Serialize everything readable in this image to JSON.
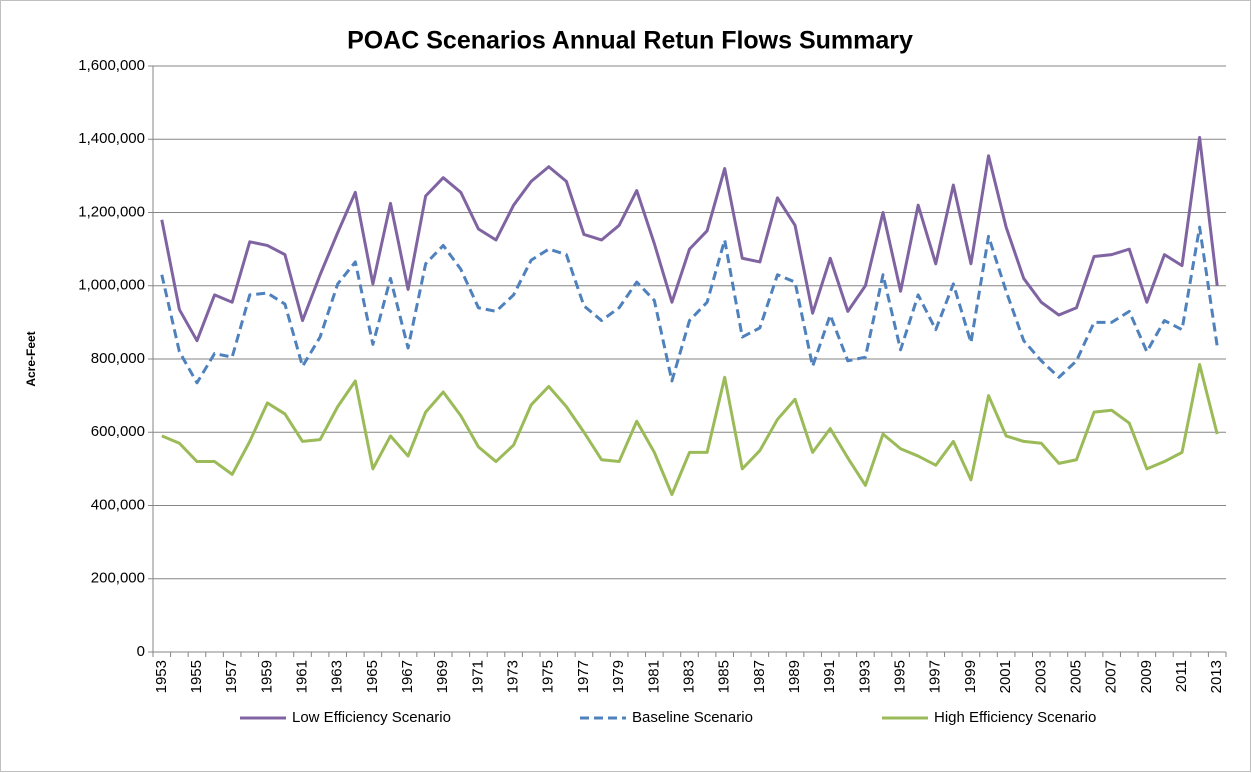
{
  "chart_data": {
    "type": "line",
    "title": "POAC Scenarios Annual Retun Flows Summary",
    "y_label": "Acre-Feet",
    "categories": [
      "1953",
      null,
      "1955",
      null,
      "1957",
      null,
      "1959",
      null,
      "1961",
      null,
      "1963",
      null,
      "1965",
      null,
      "1967",
      null,
      "1969",
      null,
      "1971",
      null,
      "1973",
      null,
      "1975",
      null,
      "1977",
      null,
      "1979",
      null,
      "1981",
      null,
      "1983",
      null,
      "1985",
      null,
      "1987",
      null,
      "1989",
      null,
      "1991",
      null,
      "1993",
      null,
      "1995",
      null,
      "1997",
      null,
      "1999",
      null,
      "2001",
      null,
      "2003",
      null,
      "2005",
      null,
      "2007",
      null,
      "2009",
      null,
      "2011",
      null,
      "2013"
    ],
    "series": [
      {
        "name": "Low Efficiency Scenario",
        "color": "#8064a2",
        "line_style": "solid",
        "values": [
          1180000,
          935000,
          850000,
          975000,
          955000,
          1120000,
          1110000,
          1085000,
          905000,
          1030000,
          1145000,
          1255000,
          1005000,
          1225000,
          990000,
          1245000,
          1295000,
          1255000,
          1155000,
          1125000,
          1220000,
          1285000,
          1325000,
          1285000,
          1140000,
          1125000,
          1165000,
          1260000,
          1115000,
          955000,
          1100000,
          1150000,
          1320000,
          1075000,
          1065000,
          1240000,
          1165000,
          925000,
          1075000,
          930000,
          1000000,
          1200000,
          985000,
          1220000,
          1060000,
          1275000,
          1060000,
          1355000,
          1160000,
          1020000,
          955000,
          920000,
          940000,
          1080000,
          1085000,
          1100000,
          955000,
          1085000,
          1055000,
          1405000,
          1000000
        ]
      },
      {
        "name": "Baseline Scenario",
        "color": "#4f81bd",
        "line_style": "dashed",
        "values": [
          1030000,
          820000,
          735000,
          815000,
          805000,
          975000,
          980000,
          950000,
          780000,
          860000,
          1005000,
          1065000,
          840000,
          1020000,
          830000,
          1060000,
          1110000,
          1045000,
          940000,
          930000,
          975000,
          1070000,
          1100000,
          1085000,
          945000,
          905000,
          940000,
          1010000,
          960000,
          740000,
          905000,
          955000,
          1125000,
          860000,
          885000,
          1030000,
          1010000,
          780000,
          920000,
          795000,
          805000,
          1030000,
          825000,
          975000,
          880000,
          1005000,
          845000,
          1135000,
          985000,
          850000,
          795000,
          750000,
          795000,
          900000,
          900000,
          930000,
          820000,
          905000,
          880000,
          1160000,
          835000
        ]
      },
      {
        "name": "High Efficiency Scenario",
        "color": "#9bbb59",
        "line_style": "solid",
        "values": [
          590000,
          570000,
          520000,
          520000,
          485000,
          575000,
          680000,
          650000,
          575000,
          580000,
          670000,
          740000,
          500000,
          590000,
          535000,
          655000,
          710000,
          645000,
          560000,
          520000,
          565000,
          675000,
          725000,
          670000,
          600000,
          525000,
          520000,
          630000,
          545000,
          430000,
          545000,
          545000,
          750000,
          500000,
          550000,
          635000,
          690000,
          545000,
          610000,
          530000,
          455000,
          595000,
          555000,
          535000,
          510000,
          575000,
          470000,
          700000,
          590000,
          575000,
          570000,
          515000,
          525000,
          655000,
          660000,
          625000,
          500000,
          520000,
          545000,
          785000,
          595000
        ]
      }
    ],
    "ylim": [
      0,
      1600000
    ],
    "yticks": [
      0,
      {
        "value": 200000,
        "label": "200,000"
      },
      {
        "value": 400000,
        "label": "400,000"
      },
      {
        "value": 600000,
        "label": "600,000"
      },
      {
        "value": 800000,
        "label": "800,000"
      },
      {
        "value": 1000000,
        "label": "1,000,000"
      },
      {
        "value": 1200000,
        "label": "1,200,000"
      },
      {
        "value": 1400000,
        "label": "1,400,000"
      },
      {
        "value": 1600000,
        "label": "1,600,000"
      }
    ],
    "grid": true,
    "legend": "bottom"
  }
}
